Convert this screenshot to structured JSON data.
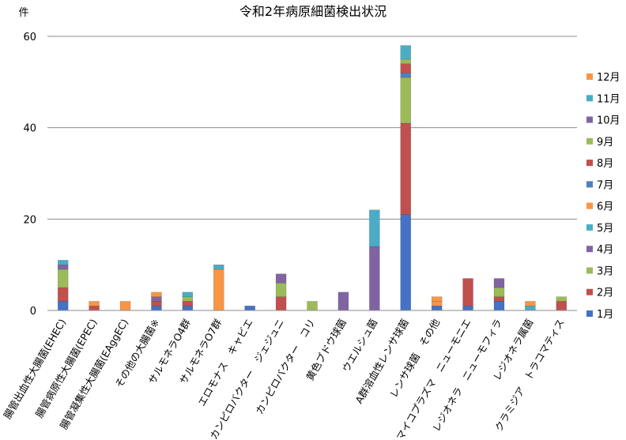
{
  "chart_data": {
    "type": "bar",
    "stacked": true,
    "title": "令和2年病原細菌検出状況",
    "ylabel": "件",
    "xlabel": "",
    "ylim": [
      0,
      60
    ],
    "yticks": [
      0,
      20,
      40,
      60
    ],
    "grid": true,
    "legend_position": "right",
    "categories": [
      "腸管出血性大腸菌(EHEC)",
      "腸管病原性大腸菌(EPEC)",
      "腸管凝集性大腸菌(EAggEC)",
      "その他の大腸菌※",
      "サルモネラO4群",
      "サルモネラO7群",
      "エロモナス　キャビエ",
      "カンピロバクター　ジェジュニ",
      "カンピロバクター　コリ",
      "黄色ブドウ球菌",
      "ウエルシュ菌",
      "A群溶血性レンサ球菌",
      "レンサ球菌　その他",
      "マイコプラズマ　ニューモニエ",
      "レジオネラ　ニューモフィラ",
      "レジオネラ属菌",
      "クラミジア　トラコマティス"
    ],
    "series": [
      {
        "name": "1月",
        "color": "#4472C4",
        "values": [
          2,
          0,
          0,
          1,
          1,
          0,
          1,
          0,
          0,
          0,
          0,
          21,
          1,
          1,
          2,
          0,
          0
        ]
      },
      {
        "name": "2月",
        "color": "#C0504D",
        "values": [
          3,
          1,
          0,
          1,
          1,
          0,
          0,
          3,
          0,
          0,
          0,
          20,
          0,
          6,
          1,
          0,
          2
        ]
      },
      {
        "name": "3月",
        "color": "#9BBB59",
        "values": [
          4,
          0,
          0,
          0,
          1,
          0,
          0,
          3,
          2,
          0,
          0,
          10,
          0,
          0,
          2,
          0,
          1
        ]
      },
      {
        "name": "4月",
        "color": "#8064A2",
        "values": [
          1,
          0,
          0,
          1,
          0,
          0,
          0,
          2,
          0,
          4,
          14,
          0,
          0,
          0,
          2,
          0,
          0
        ]
      },
      {
        "name": "5月",
        "color": "#4BACC6",
        "values": [
          1,
          0,
          0,
          0,
          1,
          0,
          0,
          0,
          0,
          0,
          8,
          0,
          0,
          0,
          0,
          1,
          0
        ]
      },
      {
        "name": "6月",
        "color": "#F79646",
        "values": [
          0,
          1,
          2,
          1,
          0,
          9,
          0,
          0,
          0,
          0,
          0,
          0,
          1,
          0,
          0,
          1,
          0
        ]
      },
      {
        "name": "7月",
        "color": "#4F81BD",
        "values": [
          0,
          0,
          0,
          0,
          0,
          0,
          0,
          0,
          0,
          0,
          0,
          1,
          0,
          0,
          0,
          0,
          0
        ]
      },
      {
        "name": "8月",
        "color": "#C0504D",
        "values": [
          0,
          0,
          0,
          0,
          0,
          0,
          0,
          0,
          0,
          0,
          0,
          2,
          0,
          0,
          0,
          0,
          0
        ]
      },
      {
        "name": "9月",
        "color": "#9BBB59",
        "values": [
          0,
          0,
          0,
          0,
          0,
          0,
          0,
          0,
          0,
          0,
          0,
          1,
          0,
          0,
          0,
          0,
          0
        ]
      },
      {
        "name": "10月",
        "color": "#8064A2",
        "values": [
          0,
          0,
          0,
          0,
          0,
          0,
          0,
          0,
          0,
          0,
          0,
          0,
          0,
          0,
          0,
          0,
          0
        ]
      },
      {
        "name": "11月",
        "color": "#4BACC6",
        "values": [
          0,
          0,
          0,
          0,
          0,
          1,
          0,
          0,
          0,
          0,
          0,
          3,
          0,
          0,
          0,
          0,
          0
        ]
      },
      {
        "name": "12月",
        "color": "#F79646",
        "values": [
          0,
          0,
          0,
          0,
          0,
          0,
          0,
          0,
          0,
          0,
          0,
          0,
          1,
          0,
          0,
          0,
          0
        ]
      }
    ]
  }
}
